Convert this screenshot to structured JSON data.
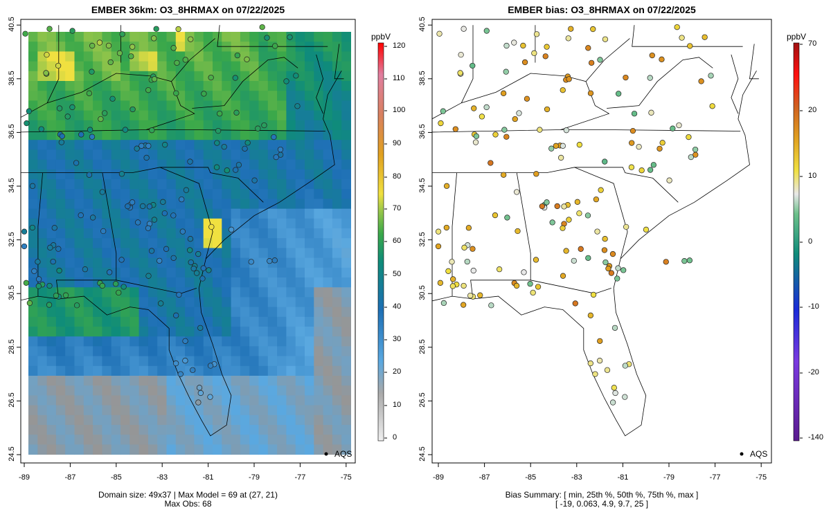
{
  "left_panel": {
    "title": "EMBER 36km: O3_8HRMAX on 07/22/2025",
    "caption_line1": "Domain size: 49x37 | Max Model = 69 at (27, 21)",
    "caption_line2": "Max Obs: 68",
    "unit": "ppbV",
    "legend": "AQS",
    "colorbar_ticks": [
      "120",
      "110",
      "100",
      "90",
      "80",
      "70",
      "60",
      "50",
      "40",
      "30",
      "20",
      "10",
      "0"
    ]
  },
  "right_panel": {
    "title": "EMBER bias: O3_8HRMAX on 07/22/2025",
    "caption_line1": "Bias Summary: [ min, 25th %, 50th %, 75th %, max ]",
    "caption_line2": "[ -19,   0.063,   4.9,   9.7,   25 ]",
    "unit": "ppbV",
    "legend": "AQS",
    "colorbar_ticks": [
      "70",
      "20",
      "10",
      "0",
      "-10",
      "-20",
      "-140"
    ]
  },
  "axes": {
    "x_ticks": [
      "-89",
      "-87",
      "-85",
      "-83",
      "-81",
      "-79",
      "-77",
      "-75"
    ],
    "y_ticks": [
      "40.5",
      "38.5",
      "36.5",
      "34.5",
      "32.5",
      "30.5",
      "28.5",
      "26.5",
      "24.5"
    ]
  },
  "colors": {
    "scale_low": "#e6e6e6",
    "scale_mid_blue": "#1f6fb4",
    "scale_green": "#2aa04a",
    "scale_yellow": "#f0e040",
    "scale_high": "#ff1010",
    "bias_purple": "#5a1b8f",
    "bias_red": "#b01010"
  }
}
